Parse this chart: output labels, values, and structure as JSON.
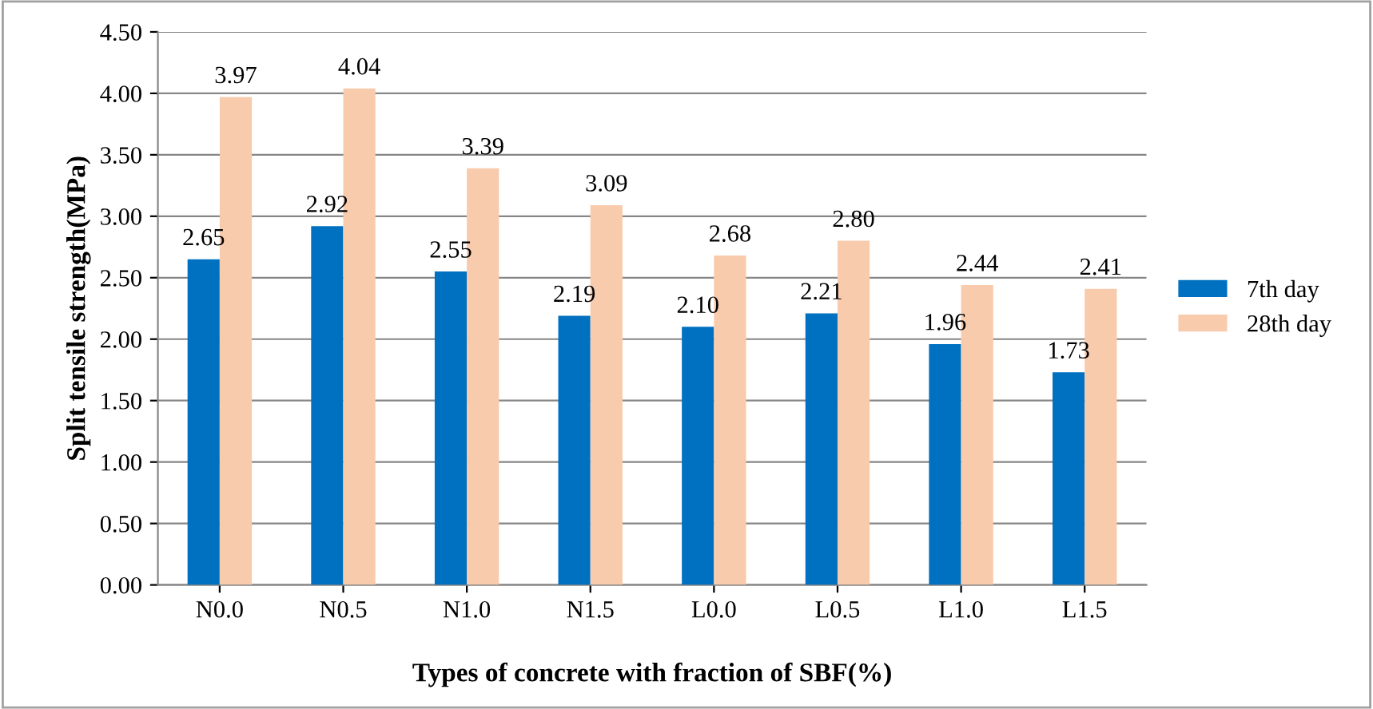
{
  "chart_data": {
    "type": "bar",
    "xlabel": "Types of concrete with fraction of SBF(%)",
    "ylabel": "Split tensile strength(MPa)",
    "categories": [
      "N0.0",
      "N0.5",
      "N1.0",
      "N1.5",
      "L0.0",
      "L0.5",
      "L1.0",
      "L1.5"
    ],
    "series": [
      {
        "name": "7th day",
        "color": "#0070c0",
        "values": [
          2.65,
          2.92,
          2.55,
          2.19,
          2.1,
          2.21,
          1.96,
          1.73
        ],
        "value_labels": [
          "2.65",
          "2.92",
          "2.55",
          "2.19",
          "2.10",
          "2.21",
          "1.96",
          "1.73"
        ]
      },
      {
        "name": "28th day",
        "color": "#f8cbad",
        "values": [
          3.97,
          4.04,
          3.39,
          3.09,
          2.68,
          2.8,
          2.44,
          2.41
        ],
        "value_labels": [
          "3.97",
          "4.04",
          "3.39",
          "3.09",
          "2.68",
          "2.80",
          "2.44",
          "2.41"
        ]
      }
    ],
    "ylim": [
      0,
      4.5
    ],
    "yticks": [
      {
        "value": 0,
        "label": "0.00"
      },
      {
        "value": 0.5,
        "label": "0.50"
      },
      {
        "value": 1,
        "label": "1.00"
      },
      {
        "value": 1.5,
        "label": "1.50"
      },
      {
        "value": 2,
        "label": "2.00"
      },
      {
        "value": 2.5,
        "label": "2.50"
      },
      {
        "value": 3,
        "label": "3.00"
      },
      {
        "value": 3.5,
        "label": "3.50"
      },
      {
        "value": 4,
        "label": "4.00"
      },
      {
        "value": 4.5,
        "label": "4.50"
      }
    ],
    "grid": "y",
    "legend": "right"
  }
}
